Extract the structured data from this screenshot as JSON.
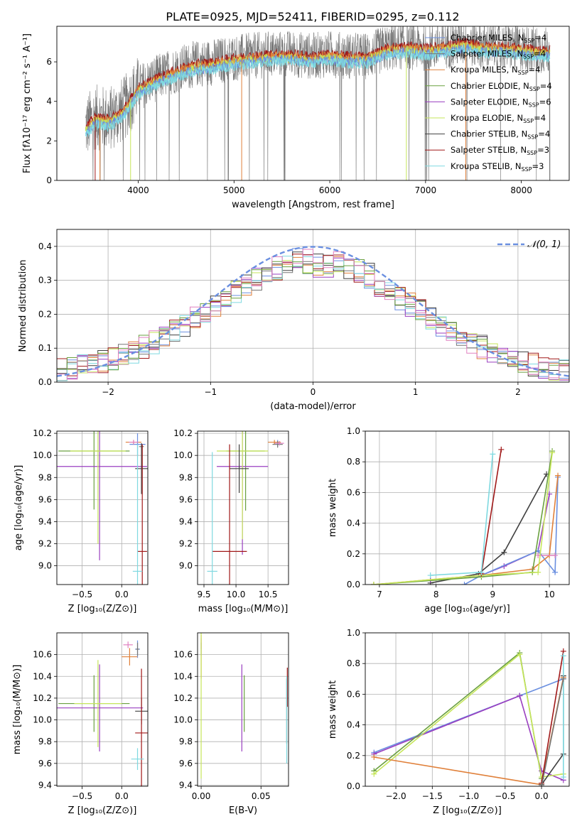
{
  "title": "PLATE=0925, MJD=52411, FIBERID=0295, z=0.112",
  "colors": {
    "c1": "#6a8fe0",
    "c2": "#e0803a",
    "c3": "#777777",
    "c4": "#9a3fc0",
    "c5": "#c6e65a",
    "c6": "#404040",
    "c7": "#a01818",
    "c8": "#7fd9e0",
    "c9": "#6aa040",
    "c10": "#e080c0"
  },
  "legend": [
    {
      "label": "Chabrier MILES, N",
      "sub": "SSP",
      "tail": "=4",
      "color": "c1"
    },
    {
      "label": "Salpeter MILES, N",
      "sub": "SSP",
      "tail": "=4",
      "color": "c3"
    },
    {
      "label": "Kroupa MILES, N",
      "sub": "SSP",
      "tail": "=4",
      "color": "c2"
    },
    {
      "label": "Chabrier ELODIE, N",
      "sub": "SSP",
      "tail": "=4",
      "color": "c9"
    },
    {
      "label": "Salpeter ELODIE, N",
      "sub": "SSP",
      "tail": "=6",
      "color": "c4"
    },
    {
      "label": "Kroupa ELODIE, N",
      "sub": "SSP",
      "tail": "=4",
      "color": "c5"
    },
    {
      "label": "Chabrier STELIB, N",
      "sub": "SSP",
      "tail": "=4",
      "color": "c6"
    },
    {
      "label": "Salpeter STELIB, N",
      "sub": "SSP",
      "tail": "=3",
      "color": "c7"
    },
    {
      "label": "Kroupa STELIB, N",
      "sub": "SSP",
      "tail": "=3",
      "color": "c8"
    }
  ],
  "chart_data": [
    {
      "id": "spectrum",
      "type": "line",
      "xlabel": "wavelength [Angstrom, rest frame]",
      "ylabel": "Flux [fλ10⁻¹⁷ erg cm⁻² s⁻¹ A⁻¹]",
      "xlim": [
        3150,
        8500
      ],
      "ylim": [
        0,
        7.8
      ],
      "xticks": [
        4000,
        5000,
        6000,
        7000,
        8000
      ],
      "yticks": [
        0,
        2,
        4,
        6
      ],
      "continuum": [
        [
          3450,
          2.7
        ],
        [
          3550,
          3.2
        ],
        [
          3700,
          3.1
        ],
        [
          3850,
          3.6
        ],
        [
          4000,
          4.7
        ],
        [
          4200,
          5.2
        ],
        [
          4400,
          5.6
        ],
        [
          4600,
          5.9
        ],
        [
          4800,
          6.0
        ],
        [
          5000,
          6.2
        ],
        [
          5200,
          6.3
        ],
        [
          5400,
          6.4
        ],
        [
          5600,
          6.4
        ],
        [
          5800,
          6.3
        ],
        [
          6000,
          6.4
        ],
        [
          6200,
          6.3
        ],
        [
          6400,
          6.3
        ],
        [
          6600,
          6.7
        ],
        [
          6800,
          6.8
        ],
        [
          7000,
          6.7
        ],
        [
          7200,
          6.8
        ],
        [
          7400,
          7.0
        ],
        [
          7600,
          6.8
        ],
        [
          7800,
          6.8
        ],
        [
          8000,
          6.7
        ],
        [
          8200,
          6.6
        ],
        [
          8300,
          6.6
        ]
      ],
      "model_range": [
        3450,
        8300
      ]
    },
    {
      "id": "residuals",
      "type": "line",
      "xlabel": "(data-model)/error",
      "ylabel": "Normed distribution",
      "xlim": [
        -2.5,
        2.5
      ],
      "ylim": [
        0,
        0.45
      ],
      "xticks": [
        -2,
        -1,
        0,
        1,
        2
      ],
      "yticks": [
        0.0,
        0.1,
        0.2,
        0.3,
        0.4
      ],
      "gauss_label": "𝒩(0, 1)",
      "bin_width": 0.1
    },
    {
      "id": "age_vs_Z",
      "type": "scatter",
      "xlabel": "Z [log₁₀(Z/Z⊙)]",
      "ylabel": "age  [log₁₀(age/yr)]",
      "xlim": [
        -0.82,
        0.33
      ],
      "ylim": [
        8.83,
        10.22
      ],
      "xticks": [
        -0.5,
        0.0
      ],
      "yticks": [
        9.0,
        9.2,
        9.4,
        9.6,
        9.8,
        10.0,
        10.2
      ],
      "points": [
        {
          "c": "c1",
          "x": 0.2,
          "y": 10.1,
          "xe": 0.1,
          "ye": 0.1
        },
        {
          "c": "c2",
          "x": 0.15,
          "y": 10.12,
          "xe": 0.1,
          "ye": 0.02
        },
        {
          "c": "c3",
          "x": 0.25,
          "y": 10.08,
          "xe": 0.03,
          "ye": 0.03
        },
        {
          "c": "c9",
          "x": -0.35,
          "y": 10.04,
          "xe": 0.45,
          "ye": 0.53
        },
        {
          "c": "c4",
          "x": -0.28,
          "y": 9.9,
          "xe": 0.6,
          "ye": 0.85
        },
        {
          "c": "c5",
          "x": -0.3,
          "y": 10.04,
          "xe": 0.35,
          "ye": 0.84
        },
        {
          "c": "c6",
          "x": 0.25,
          "y": 9.88,
          "xe": 0.08,
          "ye": 0.23
        },
        {
          "c": "c7",
          "x": 0.26,
          "y": 9.13,
          "xe": 0.06,
          "ye": 0.97
        },
        {
          "c": "c8",
          "x": 0.2,
          "y": 8.95,
          "xe": 0.06,
          "ye": 1.15
        },
        {
          "c": "c10",
          "x": 0.15,
          "y": 10.12,
          "xe": 0.06,
          "ye": 0.02
        }
      ]
    },
    {
      "id": "age_vs_mass",
      "type": "scatter",
      "xlabel": "mass [log₁₀(M/M⊙)]",
      "ylabel": "",
      "xlim": [
        9.4,
        10.82
      ],
      "ylim": [
        8.83,
        10.22
      ],
      "xticks": [
        9.5,
        10.0,
        10.5
      ],
      "yticks": [
        9.0,
        9.2,
        9.4,
        9.6,
        9.8,
        10.0,
        10.2
      ],
      "points": [
        {
          "c": "c1",
          "x": 10.65,
          "y": 10.11,
          "xe": 0.05,
          "ye": 0.03
        },
        {
          "c": "c2",
          "x": 10.6,
          "y": 10.12,
          "xe": 0.1,
          "ye": 0.02
        },
        {
          "c": "c3",
          "x": 10.65,
          "y": 10.1,
          "xe": 0.08,
          "ye": 0.03
        },
        {
          "c": "c9",
          "x": 10.15,
          "y": 10.04,
          "xe": 0.3,
          "ye": 0.54
        },
        {
          "c": "c4",
          "x": 10.1,
          "y": 9.9,
          "xe": 0.4,
          "ye": 0.8
        },
        {
          "c": "c5",
          "x": 10.1,
          "y": 10.04,
          "xe": 0.4,
          "ye": 0.8
        },
        {
          "c": "c6",
          "x": 10.05,
          "y": 9.88,
          "xe": 0.15,
          "ye": 0.22
        },
        {
          "c": "c7",
          "x": 9.9,
          "y": 9.13,
          "xe": 0.27,
          "ye": 0.97
        },
        {
          "c": "c8",
          "x": 9.63,
          "y": 8.95,
          "xe": 0.08,
          "ye": 1.08
        },
        {
          "c": "c10",
          "x": 10.68,
          "y": 10.11,
          "xe": 0.07,
          "ye": 0.02
        }
      ]
    },
    {
      "id": "mw_vs_age",
      "type": "line",
      "xlabel": "age  [log₁₀(age/yr)]",
      "ylabel": "mass weight",
      "xlim": [
        6.75,
        10.35
      ],
      "ylim": [
        0.0,
        1.0
      ],
      "xticks": [
        7,
        8,
        9,
        10
      ],
      "yticks": [
        0.0,
        0.2,
        0.4,
        0.6,
        0.8,
        1.0
      ],
      "series": [
        {
          "c": "c6",
          "pts": [
            [
              7.9,
              0.01
            ],
            [
              8.75,
              0.07
            ],
            [
              9.2,
              0.21
            ],
            [
              9.95,
              0.72
            ]
          ]
        },
        {
          "c": "c4",
          "pts": [
            [
              7.9,
              0.03
            ],
            [
              8.8,
              0.06
            ],
            [
              9.2,
              0.12
            ],
            [
              9.8,
              0.22
            ],
            [
              10.0,
              0.59
            ]
          ]
        },
        {
          "c": "c1",
          "pts": [
            [
              8.5,
              0.0
            ],
            [
              8.8,
              0.06
            ],
            [
              9.8,
              0.22
            ],
            [
              10.1,
              0.08
            ],
            [
              10.15,
              0.7
            ]
          ]
        },
        {
          "c": "c2",
          "pts": [
            [
              6.9,
              0.0
            ],
            [
              8.8,
              0.06
            ],
            [
              9.7,
              0.1
            ],
            [
              10.0,
              0.19
            ],
            [
              10.15,
              0.71
            ]
          ]
        },
        {
          "c": "c10",
          "pts": [
            [
              9.8,
              0.19
            ],
            [
              10.1,
              0.19
            ]
          ]
        },
        {
          "c": "c9",
          "pts": [
            [
              6.9,
              0.0
            ],
            [
              8.8,
              0.05
            ],
            [
              9.7,
              0.08
            ],
            [
              10.05,
              0.87
            ]
          ]
        },
        {
          "c": "c5",
          "pts": [
            [
              6.9,
              0.0
            ],
            [
              8.8,
              0.06
            ],
            [
              9.8,
              0.08
            ],
            [
              10.05,
              0.86
            ]
          ]
        },
        {
          "c": "c7",
          "pts": [
            [
              8.8,
              0.07
            ],
            [
              9.15,
              0.88
            ]
          ]
        },
        {
          "c": "c8",
          "pts": [
            [
              7.9,
              0.06
            ],
            [
              8.8,
              0.08
            ],
            [
              9.0,
              0.85
            ]
          ]
        }
      ]
    },
    {
      "id": "mass_vs_Z",
      "type": "scatter",
      "xlabel": "Z [log₁₀(Z/Z⊙)]",
      "ylabel": "mass [log₁₀(M/M⊙)]",
      "xlim": [
        -0.82,
        0.33
      ],
      "ylim": [
        9.39,
        10.8
      ],
      "xticks": [
        -0.5,
        0.0
      ],
      "yticks": [
        9.4,
        9.6,
        9.8,
        10.0,
        10.2,
        10.4,
        10.6
      ],
      "points": [
        {
          "c": "c1",
          "x": 0.2,
          "y": 10.65,
          "xe": 0.03,
          "ye": 0.08
        },
        {
          "c": "c2",
          "x": 0.1,
          "y": 10.58,
          "xe": 0.1,
          "ye": 0.08
        },
        {
          "c": "c3",
          "x": 0.2,
          "y": 10.65,
          "xe": 0.02,
          "ye": 0.06
        },
        {
          "c": "c9",
          "x": -0.35,
          "y": 10.15,
          "xe": 0.45,
          "ye": 0.26
        },
        {
          "c": "c4",
          "x": -0.28,
          "y": 10.11,
          "xe": 0.55,
          "ye": 0.4
        },
        {
          "c": "c5",
          "x": -0.3,
          "y": 10.15,
          "xe": 0.3,
          "ye": 0.4
        },
        {
          "c": "c6",
          "x": 0.25,
          "y": 10.08,
          "xe": 0.08,
          "ye": 0.12
        },
        {
          "c": "c7",
          "x": 0.25,
          "y": 9.88,
          "xe": 0.08,
          "ye": 0.59
        },
        {
          "c": "c8",
          "x": 0.2,
          "y": 9.64,
          "xe": 0.08,
          "ye": 0.1
        },
        {
          "c": "c10",
          "x": 0.08,
          "y": 10.69,
          "xe": 0.06,
          "ye": 0.03
        }
      ]
    },
    {
      "id": "mass_vs_ebv",
      "type": "scatter",
      "xlabel": "E(B-V)",
      "ylabel": "",
      "xlim": [
        -0.003,
        0.073
      ],
      "ylim": [
        9.39,
        10.8
      ],
      "xticks": [
        0.0,
        0.05
      ],
      "yticks": [
        9.4,
        9.6,
        9.8,
        10.0,
        10.2,
        10.4,
        10.6
      ],
      "points": [
        {
          "c": "c1",
          "x": 0.0,
          "y": 10.65,
          "xe": 0.0,
          "ye": 0.06
        },
        {
          "c": "c2",
          "x": 0.0,
          "y": 10.58,
          "xe": 0.0,
          "ye": 0.2
        },
        {
          "c": "c10",
          "x": 0.0,
          "y": 10.7,
          "xe": 0.0,
          "ye": 0.05
        },
        {
          "c": "c5",
          "x": 0.0,
          "y": 10.15,
          "xe": 0.0,
          "ye": 0.69
        },
        {
          "c": "c4",
          "x": 0.034,
          "y": 10.11,
          "xe": 0.0,
          "ye": 0.4
        },
        {
          "c": "c9",
          "x": 0.036,
          "y": 10.15,
          "xe": 0.0,
          "ye": 0.26
        },
        {
          "c": "c6",
          "x": 0.0715,
          "y": 10.08,
          "xe": 0.0,
          "ye": 0.3
        },
        {
          "c": "c7",
          "x": 0.072,
          "y": 10.3,
          "xe": 0.0,
          "ye": 0.18
        },
        {
          "c": "c8",
          "x": 0.0715,
          "y": 10.0,
          "xe": 0.0,
          "ye": 0.4
        }
      ]
    },
    {
      "id": "mw_vs_Z",
      "type": "line",
      "xlabel": "Z [log₁₀(Z/Z⊙)]",
      "ylabel": "mass weight",
      "xlim": [
        -2.42,
        0.38
      ],
      "ylim": [
        0.0,
        1.0
      ],
      "xticks": [
        -2.0,
        -1.5,
        -1.0,
        -0.5,
        0.0
      ],
      "yticks": [
        0.0,
        0.2,
        0.4,
        0.6,
        0.8,
        1.0
      ],
      "series": [
        {
          "c": "c1",
          "pts": [
            [
              -2.3,
              0.22
            ],
            [
              -0.3,
              0.59
            ],
            [
              0.3,
              0.7
            ]
          ]
        },
        {
          "c": "c4",
          "pts": [
            [
              -2.3,
              0.21
            ],
            [
              -0.3,
              0.59
            ],
            [
              0.0,
              0.1
            ],
            [
              0.3,
              0.04
            ]
          ]
        },
        {
          "c": "c9",
          "pts": [
            [
              -2.3,
              0.1
            ],
            [
              -0.3,
              0.87
            ],
            [
              0.0,
              0.05
            ]
          ]
        },
        {
          "c": "c5",
          "pts": [
            [
              -2.3,
              0.08
            ],
            [
              -0.3,
              0.86
            ],
            [
              0.0,
              0.06
            ],
            [
              0.3,
              0.08
            ]
          ]
        },
        {
          "c": "c2",
          "pts": [
            [
              -2.3,
              0.19
            ],
            [
              0.0,
              0.01
            ],
            [
              0.3,
              0.71
            ]
          ]
        },
        {
          "c": "c6",
          "pts": [
            [
              0.0,
              0.01
            ],
            [
              0.3,
              0.21
            ],
            [
              0.3,
              0.72
            ]
          ]
        },
        {
          "c": "c7",
          "pts": [
            [
              0.0,
              0.02
            ],
            [
              0.3,
              0.88
            ]
          ]
        },
        {
          "c": "c8",
          "pts": [
            [
              0.3,
              0.06
            ],
            [
              0.3,
              0.85
            ]
          ]
        },
        {
          "c": "c3",
          "pts": [
            [
              0.0,
              0.0
            ],
            [
              0.3,
              0.7
            ]
          ]
        }
      ]
    }
  ]
}
